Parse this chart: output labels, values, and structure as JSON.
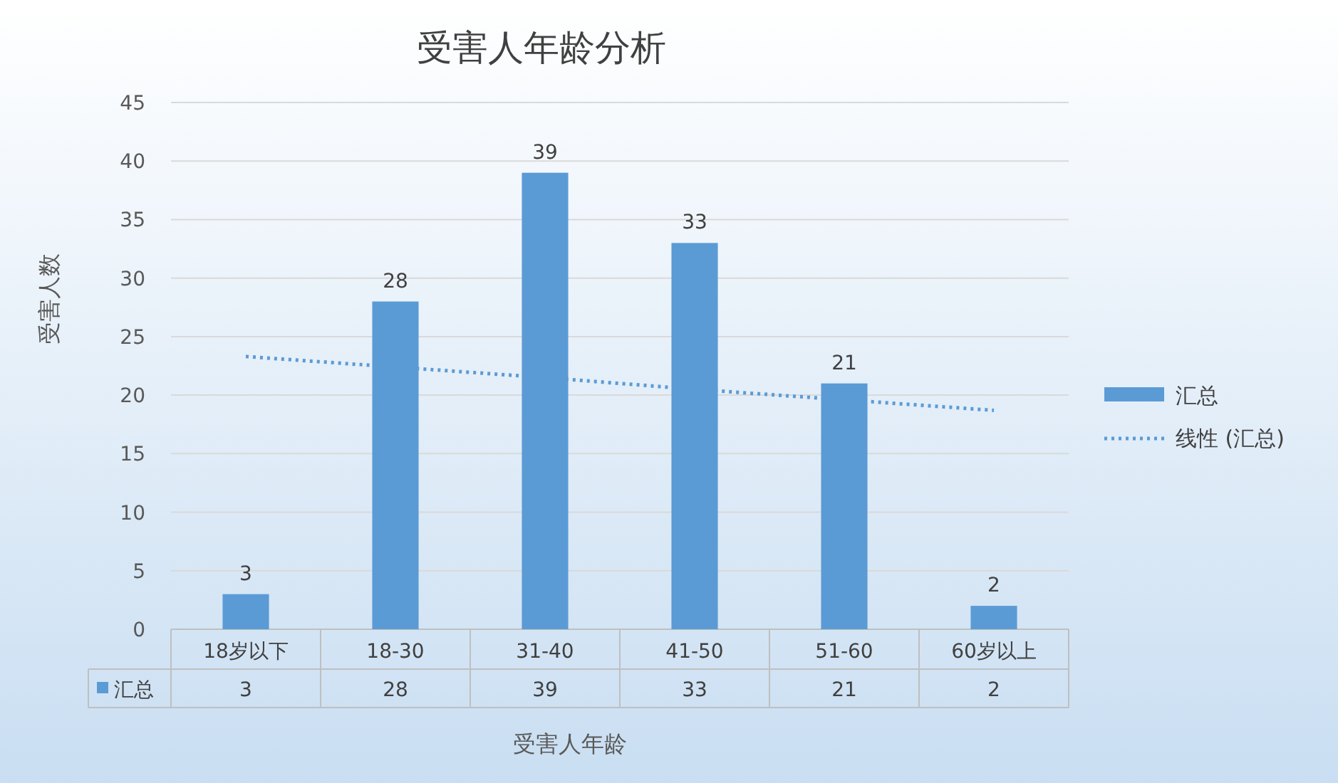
{
  "chart_data": {
    "type": "bar",
    "title": "受害人年龄分析",
    "xlabel": "受害人年龄",
    "ylabel": "受害人数",
    "categories": [
      "18岁以下",
      "18-30",
      "31-40",
      "41-50",
      "51-60",
      "60岁以上"
    ],
    "series": [
      {
        "name": "汇总",
        "color": "#5b9bd5",
        "values": [
          3,
          28,
          39,
          33,
          21,
          2
        ],
        "value_labels": [
          "3",
          "28",
          "39",
          "33",
          "21",
          "2"
        ]
      },
      {
        "name": "线性 (汇总)",
        "type": "line",
        "color": "#5b9bd5",
        "line_style": "dotted",
        "values": [
          23.3,
          22.4,
          21.5,
          20.5,
          19.6,
          18.7
        ]
      }
    ],
    "ylim": [
      0,
      45
    ],
    "yticks": [
      0,
      5,
      10,
      15,
      20,
      25,
      30,
      35,
      40,
      45
    ],
    "grid": "y",
    "legend": "right"
  }
}
